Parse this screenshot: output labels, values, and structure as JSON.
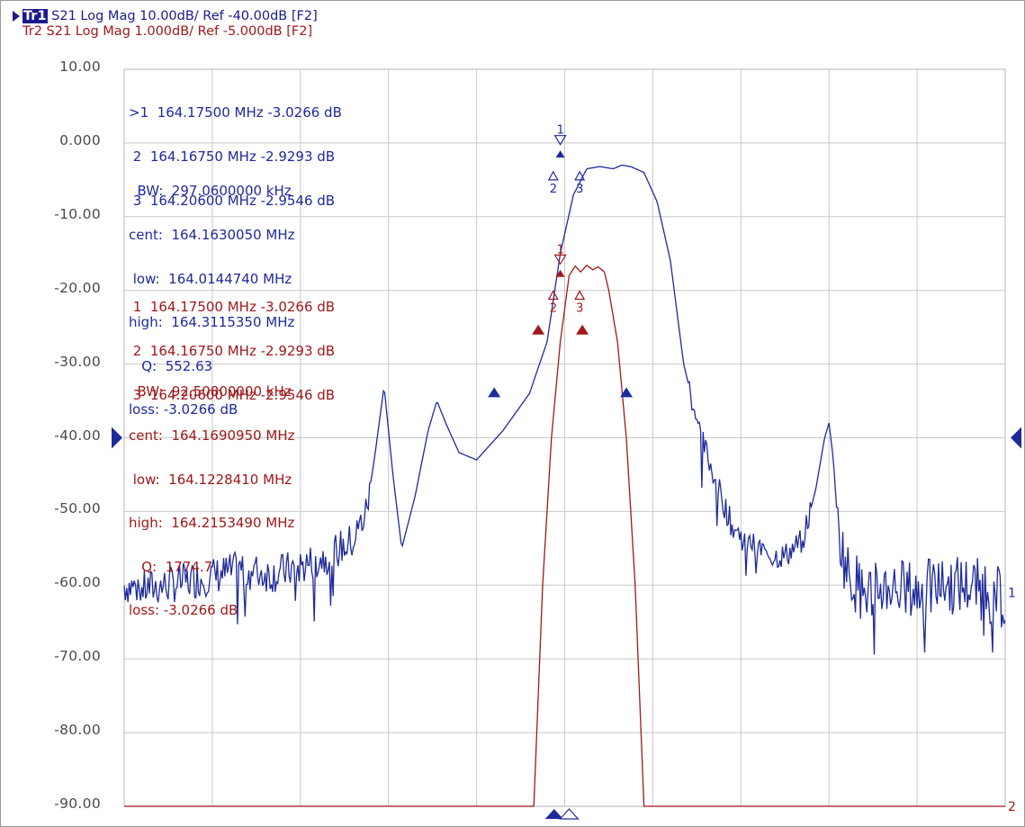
{
  "header": {
    "trace1": {
      "badge": "Tr1",
      "text": " S21 Log Mag 10.00dB/ Ref -40.00dB [F2]",
      "color": "#1a1a8c"
    },
    "trace2": {
      "text": "Tr2 S21 Log Mag 1.000dB/ Ref -5.000dB [F2]",
      "color": "#a01818"
    }
  },
  "y_ticks": [
    "10.00",
    "0.000",
    "-10.00",
    "-20.00",
    "-30.00",
    "-40.00",
    "-50.00",
    "-60.00",
    "-70.00",
    "-80.00",
    "-90.00"
  ],
  "trace_end_labels": {
    "trace1": "1",
    "trace2": "2"
  },
  "marker_tables": {
    "trace1": {
      "rows": [
        ">1  164.17500 MHz -3.0266 dB",
        " 2  164.16750 MHz -2.9293 dB",
        " 3  164.20600 MHz -2.9546 dB"
      ],
      "bw": [
        "  BW:  297.0600000 kHz",
        "cent:  164.1630050 MHz",
        " low:  164.0144740 MHz",
        "high:  164.3115350 MHz",
        "   Q:  552.63",
        "loss: -3.0266 dB"
      ]
    },
    "trace2": {
      "rows": [
        " 1  164.17500 MHz -3.0266 dB",
        " 2  164.16750 MHz -2.9293 dB",
        " 3  164.20600 MHz -2.9546 dB"
      ],
      "bw": [
        "  BW:  92.50800000 kHz",
        "cent:  164.1690950 MHz",
        " low:  164.1228410 MHz",
        "high:  164.2153490 MHz",
        "   Q:  1774.7",
        "loss: -3.0266 dB"
      ]
    }
  },
  "marker_labels": {
    "m1": "1",
    "m2": "2",
    "m3": "3"
  },
  "chart_data": {
    "type": "line",
    "title": "",
    "xlabel": "",
    "ylabel": "",
    "ylim": [
      -90,
      10
    ],
    "y_ticks": [
      10,
      0,
      -10,
      -20,
      -30,
      -40,
      -50,
      -60,
      -70,
      -80,
      -90
    ],
    "x_divisions": 10,
    "grid": true,
    "reference_level_dB": -40,
    "series": [
      {
        "name": "Tr1 S21 Log Mag",
        "color": "#1e2a9c",
        "x": [
          0,
          0.2,
          0.5,
          0.9,
          1.3,
          1.7,
          2.0,
          2.3,
          2.6,
          2.75,
          2.85,
          2.95,
          3.05,
          3.15,
          3.3,
          3.45,
          3.55,
          3.65,
          3.8,
          4.0,
          4.3,
          4.6,
          4.8,
          4.95,
          5.1,
          5.25,
          5.4,
          5.55,
          5.65,
          5.75,
          5.9,
          6.05,
          6.2,
          6.35,
          6.55,
          6.75,
          6.9,
          7.05,
          7.2,
          7.35,
          7.5,
          7.7,
          7.85,
          7.95,
          8.0,
          8.05,
          8.1,
          8.2,
          8.4,
          8.7,
          9.0,
          9.3,
          9.6,
          10.0
        ],
        "y": [
          -60,
          -60.5,
          -60,
          -59,
          -58,
          -58.5,
          -57.5,
          -56,
          -54,
          -50,
          -42,
          -33,
          -45,
          -55,
          -48,
          -39,
          -35,
          -38,
          -42,
          -43,
          -39,
          -34,
          -27,
          -15,
          -7,
          -3.5,
          -3.2,
          -3.5,
          -3.0,
          -3.2,
          -4,
          -8,
          -16,
          -30,
          -40,
          -47,
          -52,
          -54,
          -55,
          -56,
          -56,
          -54,
          -47,
          -40,
          -38,
          -43,
          -52,
          -58,
          -61,
          -60,
          -61,
          -60,
          -60,
          -62
        ]
      },
      {
        "name": "Tr2 S21 Log Mag",
        "color": "#a01818",
        "x": [
          0,
          4.6,
          4.65,
          4.75,
          4.85,
          4.95,
          5.05,
          5.12,
          5.18,
          5.25,
          5.32,
          5.38,
          5.45,
          5.5,
          5.6,
          5.7,
          5.8,
          5.9,
          6.0,
          6.05,
          10.0
        ],
        "y": [
          -90,
          -90,
          -90,
          -60,
          -40,
          -27,
          -18,
          -16.7,
          -17.5,
          -16.6,
          -17.2,
          -16.8,
          -17.5,
          -20,
          -27,
          -40,
          -60,
          -90,
          -90,
          -90,
          -90
        ]
      }
    ],
    "markers": [
      {
        "trace": "Tr1",
        "id": ">1",
        "frequency_MHz": 164.175,
        "value_dB": -3.0266
      },
      {
        "trace": "Tr1",
        "id": "2",
        "frequency_MHz": 164.1675,
        "value_dB": -2.9293
      },
      {
        "trace": "Tr1",
        "id": "3",
        "frequency_MHz": 164.206,
        "value_dB": -2.9546
      },
      {
        "trace": "Tr2",
        "id": "1",
        "frequency_MHz": 164.175,
        "value_dB": -3.0266
      },
      {
        "trace": "Tr2",
        "id": "2",
        "frequency_MHz": 164.1675,
        "value_dB": -2.9293
      },
      {
        "trace": "Tr2",
        "id": "3",
        "frequency_MHz": 164.206,
        "value_dB": -2.9546
      }
    ]
  }
}
